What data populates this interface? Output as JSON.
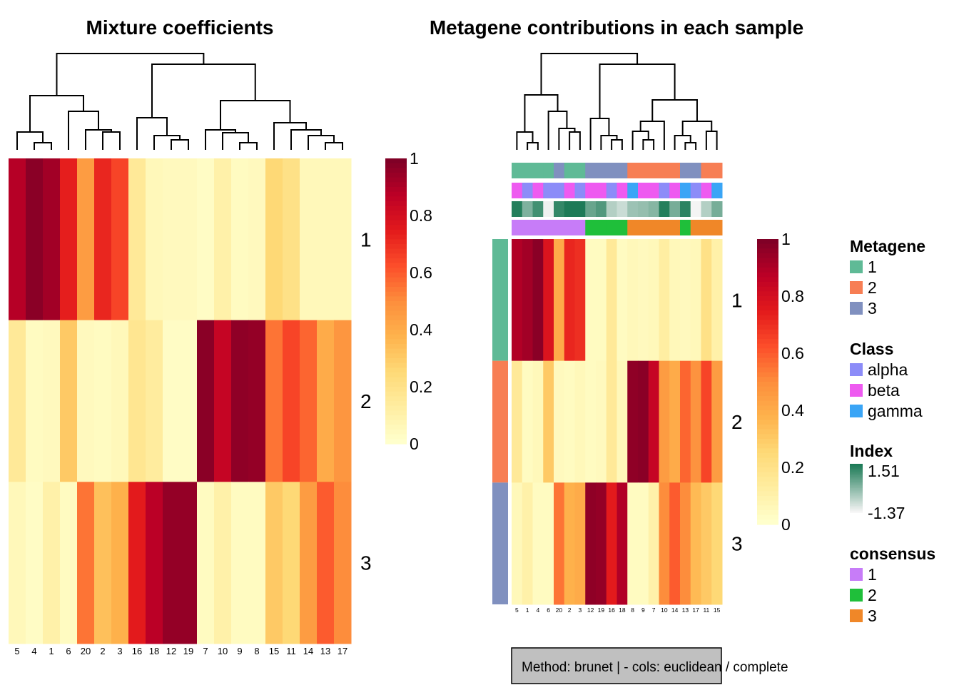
{
  "chart_data": [
    {
      "type": "heatmap",
      "title": "Mixture coefficients",
      "columns": [
        "5",
        "4",
        "1",
        "6",
        "20",
        "2",
        "3",
        "16",
        "18",
        "12",
        "19",
        "7",
        "10",
        "9",
        "8",
        "15",
        "11",
        "14",
        "13",
        "17"
      ],
      "rows": [
        "1",
        "2",
        "3"
      ],
      "values": [
        [
          0.89,
          0.98,
          0.93,
          0.74,
          0.45,
          0.72,
          0.65,
          0.15,
          0.05,
          0.04,
          0.04,
          0.02,
          0.1,
          0.03,
          0.04,
          0.25,
          0.2,
          0.05,
          0.05,
          0.05
        ],
        [
          0.15,
          0.03,
          0.04,
          0.3,
          0.04,
          0.03,
          0.05,
          0.17,
          0.13,
          0.02,
          0.02,
          0.98,
          0.85,
          0.97,
          0.96,
          0.55,
          0.65,
          0.58,
          0.4,
          0.47
        ],
        [
          0.05,
          0.02,
          0.1,
          0.03,
          0.55,
          0.33,
          0.38,
          0.75,
          0.88,
          0.96,
          0.96,
          0.03,
          0.1,
          0.03,
          0.03,
          0.3,
          0.25,
          0.45,
          0.6,
          0.5
        ]
      ],
      "color_scale": {
        "ticks": [
          "0",
          "0.2",
          "0.4",
          "0.6",
          "0.8",
          "1"
        ],
        "range": [
          0,
          1
        ]
      }
    },
    {
      "type": "heatmap",
      "title": "Metagene contributions in each sample",
      "columns": [
        "5",
        "1",
        "4",
        "6",
        "20",
        "2",
        "3",
        "12",
        "19",
        "16",
        "18",
        "8",
        "9",
        "7",
        "10",
        "14",
        "13",
        "17",
        "11",
        "15"
      ],
      "rows": [
        "1",
        "2",
        "3"
      ],
      "values": [
        [
          0.9,
          0.93,
          0.98,
          0.78,
          0.4,
          0.72,
          0.7,
          0.03,
          0.03,
          0.15,
          0.03,
          0.05,
          0.04,
          0.05,
          0.12,
          0.05,
          0.04,
          0.05,
          0.2,
          0.1
        ],
        [
          0.15,
          0.03,
          0.05,
          0.3,
          0.04,
          0.03,
          0.05,
          0.03,
          0.04,
          0.15,
          0.05,
          0.97,
          0.98,
          0.85,
          0.45,
          0.4,
          0.58,
          0.48,
          0.65,
          0.45
        ],
        [
          0.05,
          0.1,
          0.03,
          0.03,
          0.55,
          0.38,
          0.4,
          0.97,
          0.96,
          0.75,
          0.9,
          0.03,
          0.03,
          0.1,
          0.5,
          0.6,
          0.5,
          0.35,
          0.3,
          0.25
        ]
      ],
      "row_annotation": {
        "title": "Metagene",
        "values": [
          "1",
          "2",
          "3"
        ]
      },
      "column_annotations": [
        {
          "name": "Metagene",
          "values": [
            "1",
            "1",
            "1",
            "1",
            "3",
            "1",
            "1",
            "3",
            "3",
            "3",
            "3",
            "2",
            "2",
            "2",
            "2",
            "2",
            "3",
            "3",
            "2",
            "2"
          ]
        },
        {
          "name": "Class",
          "values": [
            "beta",
            "alpha",
            "beta",
            "alpha",
            "alpha",
            "beta",
            "alpha",
            "beta",
            "beta",
            "alpha",
            "beta",
            "gamma",
            "beta",
            "beta",
            "alpha",
            "beta",
            "gamma",
            "alpha",
            "beta",
            "gamma"
          ]
        },
        {
          "name": "Index",
          "values": [
            1.4,
            0.2,
            1.0,
            -1.3,
            1.2,
            1.5,
            1.5,
            0.5,
            0.8,
            -0.5,
            -0.8,
            -0.2,
            -0.1,
            0.1,
            1.4,
            0.3,
            1.3,
            -1.37,
            -0.5,
            0.3
          ]
        },
        {
          "name": "consensus",
          "values": [
            "1",
            "1",
            "1",
            "1",
            "1",
            "1",
            "1",
            "2",
            "2",
            "2",
            "2",
            "3",
            "3",
            "3",
            "3",
            "3",
            "2",
            "3",
            "3",
            "3"
          ]
        }
      ],
      "color_scale": {
        "ticks": [
          "0",
          "0.2",
          "0.4",
          "0.6",
          "0.8",
          "1"
        ],
        "range": [
          0,
          1
        ]
      }
    }
  ],
  "legends": [
    {
      "title": "Metagene",
      "items": [
        {
          "label": "1",
          "color": "#5FBA96"
        },
        {
          "label": "2",
          "color": "#F77E54"
        },
        {
          "label": "3",
          "color": "#8090BF"
        }
      ]
    },
    {
      "title": "Class",
      "items": [
        {
          "label": "alpha",
          "color": "#8C8CF8"
        },
        {
          "label": "beta",
          "color": "#EE5AF0"
        },
        {
          "label": "gamma",
          "color": "#3AA5F6"
        }
      ]
    },
    {
      "title": "Index",
      "gradient": {
        "max": "1.51",
        "min": "-1.37",
        "high_color": "#1C7A56",
        "low_color": "#F4F4F4"
      }
    },
    {
      "title": "consensus",
      "items": [
        {
          "label": "1",
          "color": "#C77CF8"
        },
        {
          "label": "2",
          "color": "#1FBF3A"
        },
        {
          "label": "3",
          "color": "#F08728"
        }
      ]
    }
  ],
  "method_box": "Method:  brunet |   - cols: euclidean / complete",
  "colors": {
    "scale": [
      "#FFFFCC",
      "#FFEDA0",
      "#FED976",
      "#FEB24C",
      "#FD8D3C",
      "#FC4E2A",
      "#E31A1C",
      "#BD0026",
      "#800026"
    ]
  }
}
